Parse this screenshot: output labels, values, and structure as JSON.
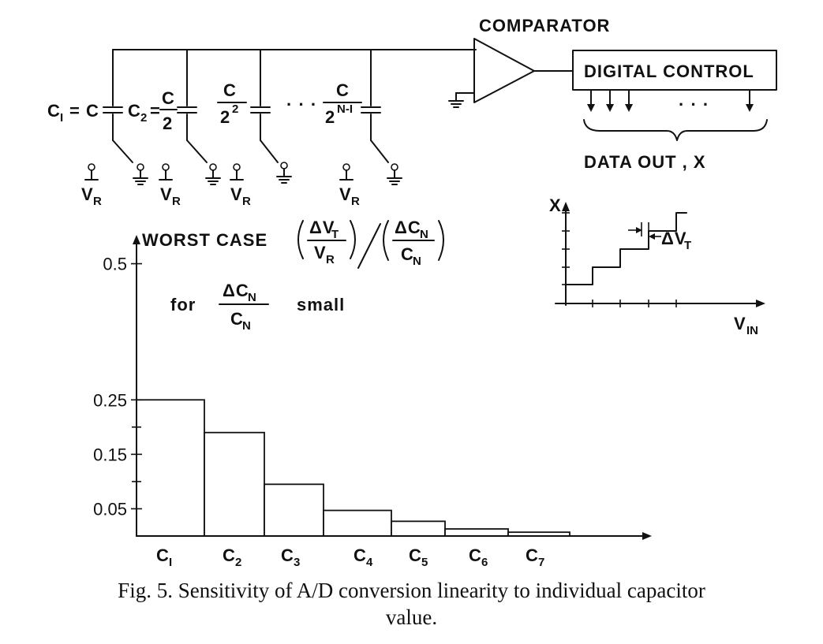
{
  "circuit": {
    "comparator_label": "COMPARATOR",
    "digital_control_label": "DIGITAL CONTROL",
    "data_out_label": "DATA OUT , X",
    "ellipsis": "· · ·",
    "cap_labels": [
      {
        "prefix": "C",
        "sub": "I",
        "eq": "= C"
      },
      {
        "prefix": "C",
        "sub": "2",
        "eq": "=",
        "num": "C",
        "den": "2"
      },
      {
        "num": "C",
        "den": "2",
        "den_sup": "2"
      },
      {
        "num": "C",
        "den": "2",
        "den_sup": "N-I"
      }
    ],
    "vr_label": "V",
    "vr_sub": "R"
  },
  "inset": {
    "y_label": "X",
    "x_label": "V",
    "x_sub": "IN",
    "delta_label": "ΔV",
    "delta_sub": "T"
  },
  "annotations": {
    "worst_case": "WORST CASE",
    "frac1_num": "ΔV",
    "frac1_num_sub": "T",
    "frac1_den": "V",
    "frac1_den_sub": "R",
    "frac2_num": "ΔC",
    "frac2_num_sub": "N",
    "frac2_den": "C",
    "frac2_den_sub": "N",
    "for_label": "for",
    "small_label": "small"
  },
  "chart_data": {
    "type": "bar",
    "categories": [
      "C1",
      "C2",
      "C3",
      "C4",
      "C5",
      "C6",
      "C7"
    ],
    "category_labels": [
      {
        "base": "C",
        "sub": "I"
      },
      {
        "base": "C",
        "sub": "2"
      },
      {
        "base": "C",
        "sub": "3"
      },
      {
        "base": "C",
        "sub": "4"
      },
      {
        "base": "C",
        "sub": "5"
      },
      {
        "base": "C",
        "sub": "6"
      },
      {
        "base": "C",
        "sub": "7"
      }
    ],
    "values": [
      0.25,
      0.19,
      0.095,
      0.047,
      0.027,
      0.013,
      0.007
    ],
    "ylim": [
      0,
      0.55
    ],
    "y_tick_labels": [
      {
        "value": 0.05,
        "label": "0.05"
      },
      {
        "value": 0.15,
        "label": "0.15"
      },
      {
        "value": 0.25,
        "label": "0.25"
      },
      {
        "value": 0.5,
        "label": "0.5"
      }
    ],
    "y_minor_ticks": [
      0.1,
      0.2
    ]
  },
  "caption": {
    "line1": "Fig. 5.  Sensitivity of A/D conversion linearity to individual capacitor",
    "line2": "value."
  }
}
